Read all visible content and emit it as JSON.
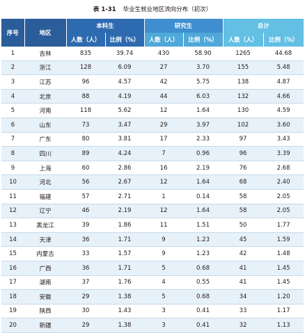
{
  "title": {
    "number": "表 1-31",
    "text": "毕业生就业地区流向分布（初次）"
  },
  "headers": {
    "seq": "序号",
    "region": "地区",
    "group_undergrad": "本科生",
    "group_grad": "研究生",
    "group_total": "总计",
    "count": "人数（人）",
    "ratio": "比例（%）"
  },
  "rows": [
    {
      "seq": "1",
      "region": "吉林",
      "u_count": "835",
      "u_ratio": "39.74",
      "g_count": "430",
      "g_ratio": "58.90",
      "t_count": "1265",
      "t_ratio": "44.68"
    },
    {
      "seq": "2",
      "region": "浙江",
      "u_count": "128",
      "u_ratio": "6.09",
      "g_count": "27",
      "g_ratio": "3.70",
      "t_count": "155",
      "t_ratio": "5.48"
    },
    {
      "seq": "3",
      "region": "江苏",
      "u_count": "96",
      "u_ratio": "4.57",
      "g_count": "42",
      "g_ratio": "5.75",
      "t_count": "138",
      "t_ratio": "4.87"
    },
    {
      "seq": "4",
      "region": "北京",
      "u_count": "88",
      "u_ratio": "4.19",
      "g_count": "44",
      "g_ratio": "6.03",
      "t_count": "132",
      "t_ratio": "4.66"
    },
    {
      "seq": "5",
      "region": "河南",
      "u_count": "118",
      "u_ratio": "5.62",
      "g_count": "12",
      "g_ratio": "1.64",
      "t_count": "130",
      "t_ratio": "4.59"
    },
    {
      "seq": "6",
      "region": "山东",
      "u_count": "73",
      "u_ratio": "3.47",
      "g_count": "29",
      "g_ratio": "3.97",
      "t_count": "102",
      "t_ratio": "3.60"
    },
    {
      "seq": "7",
      "region": "广东",
      "u_count": "80",
      "u_ratio": "3.81",
      "g_count": "17",
      "g_ratio": "2.33",
      "t_count": "97",
      "t_ratio": "3.43"
    },
    {
      "seq": "8",
      "region": "四川",
      "u_count": "89",
      "u_ratio": "4.24",
      "g_count": "7",
      "g_ratio": "0.96",
      "t_count": "96",
      "t_ratio": "3.39"
    },
    {
      "seq": "9",
      "region": "上海",
      "u_count": "60",
      "u_ratio": "2.86",
      "g_count": "16",
      "g_ratio": "2.19",
      "t_count": "76",
      "t_ratio": "2.68"
    },
    {
      "seq": "10",
      "region": "河北",
      "u_count": "56",
      "u_ratio": "2.67",
      "g_count": "12",
      "g_ratio": "1.64",
      "t_count": "68",
      "t_ratio": "2.40"
    },
    {
      "seq": "11",
      "region": "福建",
      "u_count": "57",
      "u_ratio": "2.71",
      "g_count": "1",
      "g_ratio": "0.14",
      "t_count": "58",
      "t_ratio": "2.05"
    },
    {
      "seq": "12",
      "region": "辽宁",
      "u_count": "46",
      "u_ratio": "2.19",
      "g_count": "12",
      "g_ratio": "1.64",
      "t_count": "58",
      "t_ratio": "2.05"
    },
    {
      "seq": "13",
      "region": "黑龙江",
      "u_count": "39",
      "u_ratio": "1.86",
      "g_count": "11",
      "g_ratio": "1.51",
      "t_count": "50",
      "t_ratio": "1.77"
    },
    {
      "seq": "14",
      "region": "天津",
      "u_count": "36",
      "u_ratio": "1.71",
      "g_count": "9",
      "g_ratio": "1.23",
      "t_count": "45",
      "t_ratio": "1.59"
    },
    {
      "seq": "15",
      "region": "内蒙古",
      "u_count": "33",
      "u_ratio": "1.57",
      "g_count": "9",
      "g_ratio": "1.23",
      "t_count": "42",
      "t_ratio": "1.48"
    },
    {
      "seq": "16",
      "region": "广西",
      "u_count": "36",
      "u_ratio": "1.71",
      "g_count": "5",
      "g_ratio": "0.68",
      "t_count": "41",
      "t_ratio": "1.45"
    },
    {
      "seq": "17",
      "region": "湖南",
      "u_count": "37",
      "u_ratio": "1.76",
      "g_count": "4",
      "g_ratio": "0.55",
      "t_count": "41",
      "t_ratio": "1.45"
    },
    {
      "seq": "18",
      "region": "安徽",
      "u_count": "29",
      "u_ratio": "1.38",
      "g_count": "5",
      "g_ratio": "0.68",
      "t_count": "34",
      "t_ratio": "1.20"
    },
    {
      "seq": "19",
      "region": "陕西",
      "u_count": "30",
      "u_ratio": "1.43",
      "g_count": "3",
      "g_ratio": "0.41",
      "t_count": "33",
      "t_ratio": "1.17"
    },
    {
      "seq": "20",
      "region": "新疆",
      "u_count": "29",
      "u_ratio": "1.38",
      "g_count": "3",
      "g_ratio": "0.41",
      "t_count": "32",
      "t_ratio": "1.13"
    }
  ]
}
